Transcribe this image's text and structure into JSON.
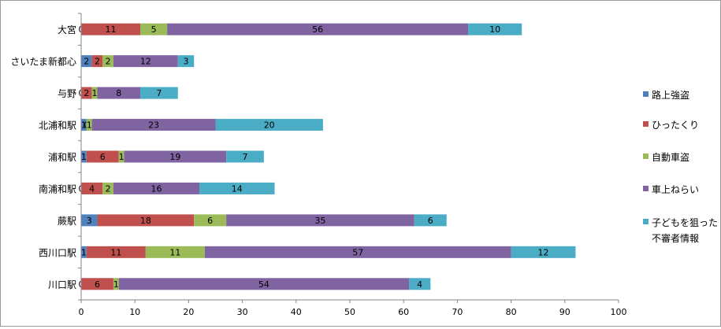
{
  "chart_data": {
    "type": "bar",
    "orientation": "horizontal",
    "stacked": true,
    "categories": [
      "大宮",
      "さいたま新都心",
      "与野",
      "北浦和駅",
      "浦和駅",
      "南浦和駅",
      "蕨駅",
      "西川口駅",
      "川口駅"
    ],
    "series": [
      {
        "name": "路上強盗",
        "color": "#4F81BD",
        "values": [
          0,
          2,
          0,
          1,
          1,
          0,
          3,
          1,
          0
        ]
      },
      {
        "name": "ひったくり",
        "color": "#C0504D",
        "values": [
          11,
          2,
          2,
          0,
          6,
          4,
          18,
          11,
          6
        ]
      },
      {
        "name": "自動車盗",
        "color": "#9BBB59",
        "values": [
          5,
          2,
          1,
          1,
          1,
          2,
          6,
          11,
          1
        ]
      },
      {
        "name": "車上ねらい",
        "color": "#8064A2",
        "values": [
          56,
          12,
          8,
          23,
          19,
          16,
          35,
          57,
          54
        ]
      },
      {
        "name": "子どもを狙った不審者情報",
        "legend_lines": [
          "子どもを狙っ",
          "た",
          "不審者情報"
        ],
        "color": "#4BACC6",
        "values": [
          10,
          3,
          7,
          20,
          7,
          14,
          6,
          12,
          4
        ]
      }
    ],
    "xlim": [
      0,
      100
    ],
    "xticks": [
      "0",
      "10",
      "20",
      "30",
      "40",
      "50",
      "60",
      "70",
      "80",
      "90",
      "100"
    ],
    "legend_position": "right",
    "grid": false
  }
}
